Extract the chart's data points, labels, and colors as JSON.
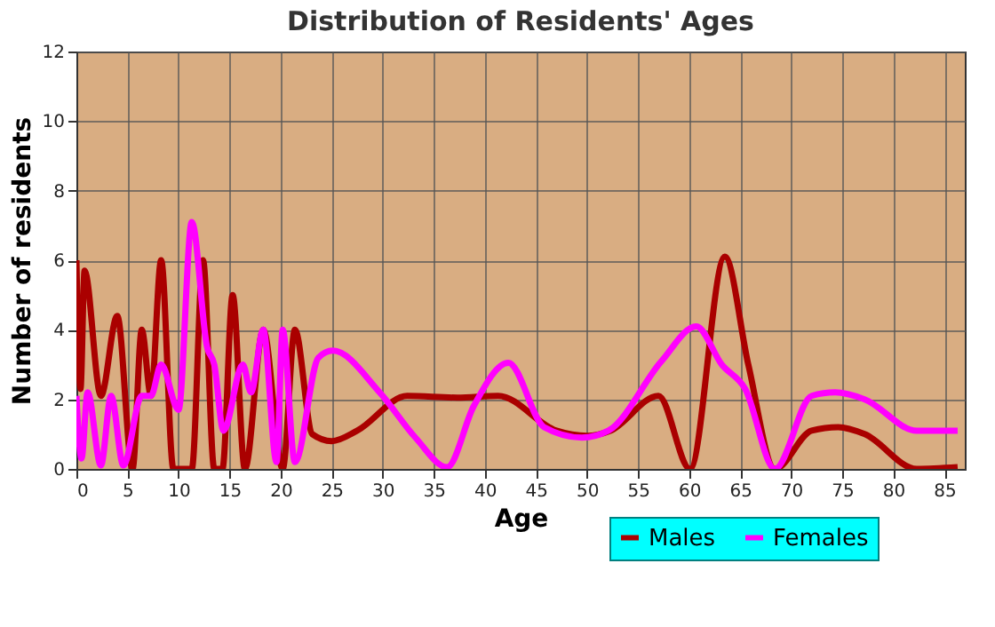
{
  "chart_data": {
    "type": "line",
    "title": "Distribution of Residents' Ages",
    "xlabel": "Age",
    "ylabel": "Number of residents",
    "xlim": [
      0,
      87
    ],
    "xticks": [
      0,
      5,
      10,
      15,
      20,
      25,
      30,
      35,
      40,
      45,
      50,
      55,
      60,
      65,
      70,
      75,
      80,
      85
    ],
    "ylim": [
      0,
      12
    ],
    "yticks": [
      0,
      2,
      4,
      6,
      8,
      10,
      12
    ],
    "grid": true,
    "legend": "bottom right",
    "marker": "none",
    "line_style": "solid",
    "series": [
      {
        "name": "Males",
        "color": "#aa0000",
        "x": [
          0,
          0.4,
          0.8,
          2.4,
          4,
          5.5,
          6.4,
          7.3,
          8.3,
          9.5,
          11.3,
          12.4,
          13.5,
          14.3,
          15.3,
          16.5,
          18.3,
          20.2,
          21.4,
          23.1,
          25,
          27.5,
          32.4,
          37.3,
          41.3,
          47,
          50,
          52.3,
          57,
          60.1,
          63.5,
          65.8,
          68.4,
          72,
          74.6,
          77.2,
          82.3,
          86.3
        ],
        "values": [
          6,
          2.3,
          5.7,
          2.1,
          4.4,
          0,
          4,
          2.1,
          6,
          0,
          0,
          6,
          0,
          0,
          5,
          0,
          4,
          0,
          4,
          1,
          0.8,
          1.1,
          2.1,
          2.05,
          2.1,
          1.1,
          0.95,
          1.1,
          2.1,
          0,
          6.1,
          3,
          0,
          1.1,
          1.2,
          1,
          0,
          0.05
        ]
      },
      {
        "name": "Females",
        "color": "#ff00ff",
        "x": [
          0,
          0.5,
          1.1,
          2.4,
          3.4,
          4.6,
          6.4,
          7.3,
          8.3,
          10,
          11.3,
          12.8,
          13.5,
          14.4,
          16.3,
          17.1,
          18.3,
          19.6,
          20.2,
          21.4,
          23.7,
          25.1,
          29.7,
          33.2,
          36.3,
          38.9,
          42.3,
          45.8,
          49.5,
          52.1,
          57.3,
          60.7,
          63.2,
          65.5,
          68.4,
          72,
          74.3,
          77.2,
          82.3,
          86.3
        ],
        "values": [
          2.1,
          0.3,
          2.2,
          0.1,
          2.1,
          0.1,
          2.1,
          2.1,
          3,
          1.7,
          7.1,
          3.5,
          3,
          1.1,
          3,
          2.2,
          4,
          0.2,
          4,
          0.2,
          3.2,
          3.4,
          2.2,
          0.9,
          0.05,
          1.8,
          3.05,
          1.2,
          0.9,
          1.1,
          3.1,
          4.1,
          3,
          2.3,
          0,
          2.1,
          2.2,
          2,
          1.1,
          1.1
        ]
      }
    ]
  }
}
